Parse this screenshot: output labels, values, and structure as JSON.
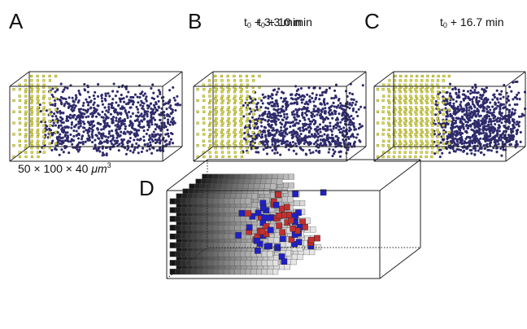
{
  "panels": {
    "A": {
      "letter": "A",
      "time_prefix": "t",
      "time_subscript": "0",
      "time_suffix": " + 3.3 min",
      "advanced_fraction": 0.2
    },
    "B": {
      "letter": "B",
      "time_prefix": "t",
      "time_subscript": "0",
      "time_suffix": " + 10 min",
      "advanced_fraction": 0.33
    },
    "C": {
      "letter": "C",
      "time_prefix": "t",
      "time_subscript": "0",
      "time_suffix": " + 16.7 min",
      "advanced_fraction": 0.45
    },
    "D": {
      "letter": "D"
    }
  },
  "dimensions": {
    "prefix": "50 × 100 × 40 ",
    "unit": "μm",
    "exponent": "3"
  },
  "colors": {
    "cell_population": "#2e2a6b",
    "front_population": "#d8d84a",
    "front_edge": "#8a8a1c",
    "marker_red": "#c23030",
    "marker_blue": "#2020c8",
    "shade_dark": "#111111",
    "shade_light": "#e6e6e6",
    "box_outline": "#222222"
  }
}
